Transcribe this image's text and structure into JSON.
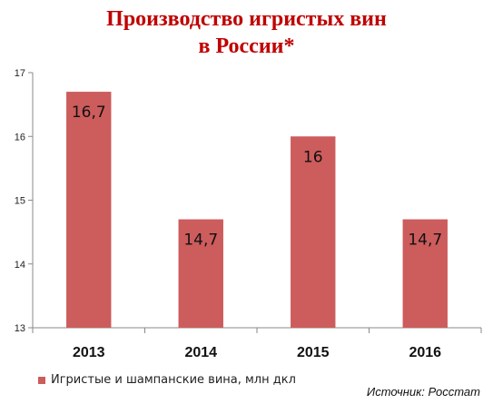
{
  "title_line1": "Производство игристых вин",
  "title_line2": "в России*",
  "source_text": "Источник: Росстат",
  "colors": {
    "bar": "#cd5c5c",
    "title": "#c00000",
    "axis": "#888888"
  },
  "chart_data": {
    "type": "bar",
    "title": "Производство игристых вин в России*",
    "categories": [
      "2013",
      "2014",
      "2015",
      "2016"
    ],
    "series": [
      {
        "name": "Игристые и шампанские вина, млн дкл",
        "values": [
          16.7,
          14.7,
          16,
          14.7
        ]
      }
    ],
    "data_labels": [
      "16,7",
      "14,7",
      "16",
      "14,7"
    ],
    "ylim": [
      13,
      17
    ],
    "yticks": [
      13,
      14,
      15,
      16,
      17
    ],
    "ytick_labels": [
      "13",
      "14",
      "15",
      "16",
      "17"
    ],
    "xlabel": "",
    "ylabel": "",
    "grid": false,
    "legend_position": "bottom-left"
  }
}
